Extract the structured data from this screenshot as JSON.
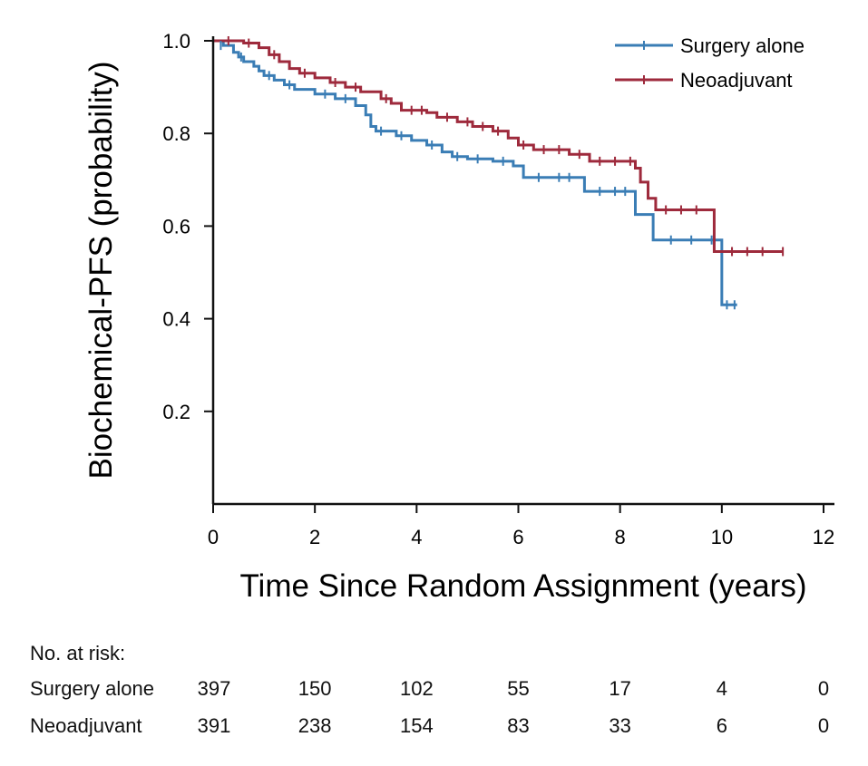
{
  "chart_data": {
    "type": "line",
    "ylabel": "Biochemical-PFS (probability)",
    "xlabel": "Time Since Random Assignment (years)",
    "xlim": [
      0,
      12
    ],
    "ylim": [
      0,
      1.0
    ],
    "x_ticks": [
      0,
      2,
      4,
      6,
      8,
      10,
      12
    ],
    "y_ticks": [
      0.2,
      0.4,
      0.6,
      0.8,
      1.0
    ],
    "x_tick_labels": [
      "0",
      "2",
      "4",
      "6",
      "8",
      "10",
      "12"
    ],
    "y_tick_labels": [
      "0.2",
      "0.4",
      "0.6",
      "0.8",
      "1.0"
    ],
    "grid": false,
    "legend_position": "top-right",
    "series": [
      {
        "name": "Surgery alone",
        "color": "#3a7db5",
        "step_points": [
          [
            0,
            1.0
          ],
          [
            0.2,
            0.99
          ],
          [
            0.4,
            0.975
          ],
          [
            0.5,
            0.965
          ],
          [
            0.6,
            0.955
          ],
          [
            0.8,
            0.945
          ],
          [
            0.9,
            0.935
          ],
          [
            1.0,
            0.925
          ],
          [
            1.2,
            0.915
          ],
          [
            1.4,
            0.905
          ],
          [
            1.6,
            0.895
          ],
          [
            2.0,
            0.885
          ],
          [
            2.4,
            0.875
          ],
          [
            2.8,
            0.86
          ],
          [
            3.0,
            0.84
          ],
          [
            3.1,
            0.815
          ],
          [
            3.2,
            0.805
          ],
          [
            3.6,
            0.795
          ],
          [
            3.9,
            0.785
          ],
          [
            4.2,
            0.775
          ],
          [
            4.5,
            0.76
          ],
          [
            4.7,
            0.75
          ],
          [
            5.0,
            0.745
          ],
          [
            5.5,
            0.74
          ],
          [
            5.9,
            0.73
          ],
          [
            6.1,
            0.705
          ],
          [
            7.3,
            0.675
          ],
          [
            8.3,
            0.625
          ],
          [
            8.65,
            0.57
          ],
          [
            10.0,
            0.43
          ],
          [
            10.3,
            0.43
          ]
        ],
        "censor_points": [
          [
            0.15,
            0.99
          ],
          [
            0.55,
            0.965
          ],
          [
            1.1,
            0.925
          ],
          [
            1.5,
            0.905
          ],
          [
            2.2,
            0.885
          ],
          [
            2.6,
            0.875
          ],
          [
            3.3,
            0.805
          ],
          [
            3.7,
            0.795
          ],
          [
            4.3,
            0.775
          ],
          [
            4.8,
            0.75
          ],
          [
            5.2,
            0.745
          ],
          [
            5.7,
            0.74
          ],
          [
            6.4,
            0.705
          ],
          [
            6.8,
            0.705
          ],
          [
            7.0,
            0.705
          ],
          [
            7.6,
            0.675
          ],
          [
            7.9,
            0.675
          ],
          [
            8.1,
            0.675
          ],
          [
            9.0,
            0.57
          ],
          [
            9.4,
            0.57
          ],
          [
            9.8,
            0.57
          ],
          [
            10.1,
            0.43
          ],
          [
            10.25,
            0.43
          ]
        ]
      },
      {
        "name": "Neoadjuvant",
        "color": "#9e2a3c",
        "step_points": [
          [
            0,
            1.0
          ],
          [
            0.6,
            0.995
          ],
          [
            0.9,
            0.985
          ],
          [
            1.1,
            0.97
          ],
          [
            1.3,
            0.955
          ],
          [
            1.5,
            0.94
          ],
          [
            1.7,
            0.93
          ],
          [
            2.0,
            0.92
          ],
          [
            2.3,
            0.91
          ],
          [
            2.6,
            0.9
          ],
          [
            2.9,
            0.89
          ],
          [
            3.3,
            0.875
          ],
          [
            3.5,
            0.865
          ],
          [
            3.7,
            0.85
          ],
          [
            4.2,
            0.845
          ],
          [
            4.4,
            0.835
          ],
          [
            4.8,
            0.825
          ],
          [
            5.1,
            0.815
          ],
          [
            5.5,
            0.805
          ],
          [
            5.8,
            0.79
          ],
          [
            6.0,
            0.775
          ],
          [
            6.3,
            0.765
          ],
          [
            7.0,
            0.755
          ],
          [
            7.4,
            0.74
          ],
          [
            8.3,
            0.725
          ],
          [
            8.4,
            0.695
          ],
          [
            8.55,
            0.66
          ],
          [
            8.7,
            0.635
          ],
          [
            9.85,
            0.545
          ],
          [
            11.2,
            0.545
          ]
        ],
        "censor_points": [
          [
            0.3,
            1.0
          ],
          [
            0.7,
            0.995
          ],
          [
            1.2,
            0.97
          ],
          [
            1.8,
            0.93
          ],
          [
            2.4,
            0.91
          ],
          [
            2.8,
            0.9
          ],
          [
            3.4,
            0.875
          ],
          [
            3.9,
            0.85
          ],
          [
            4.1,
            0.85
          ],
          [
            4.6,
            0.835
          ],
          [
            5.0,
            0.825
          ],
          [
            5.3,
            0.815
          ],
          [
            5.6,
            0.805
          ],
          [
            6.1,
            0.775
          ],
          [
            6.5,
            0.765
          ],
          [
            6.8,
            0.765
          ],
          [
            7.2,
            0.755
          ],
          [
            7.6,
            0.74
          ],
          [
            7.9,
            0.74
          ],
          [
            8.2,
            0.74
          ],
          [
            8.9,
            0.635
          ],
          [
            9.2,
            0.635
          ],
          [
            9.5,
            0.635
          ],
          [
            10.2,
            0.545
          ],
          [
            10.5,
            0.545
          ],
          [
            10.8,
            0.545
          ],
          [
            11.2,
            0.545
          ]
        ]
      }
    ]
  },
  "risk_table": {
    "title": "No. at risk:",
    "times": [
      0,
      2,
      4,
      6,
      8,
      10,
      12
    ],
    "rows": [
      {
        "label": "Surgery alone",
        "values": [
          "397",
          "150",
          "102",
          "55",
          "17",
          "4",
          "0"
        ]
      },
      {
        "label": "Neoadjuvant",
        "values": [
          "391",
          "238",
          "154",
          "83",
          "33",
          "6",
          "0"
        ]
      }
    ]
  }
}
